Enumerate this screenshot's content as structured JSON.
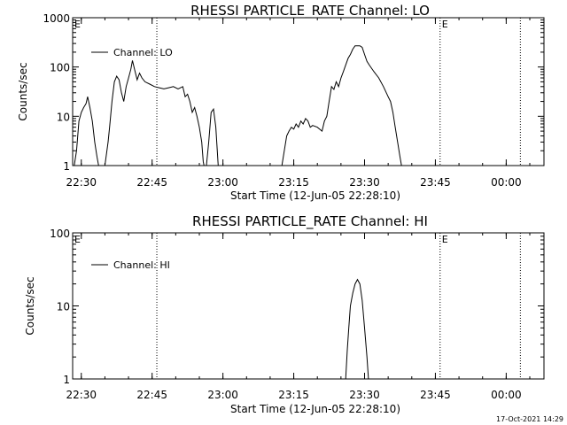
{
  "figure": {
    "footer_stamp": "17-Oct-2021 14:29",
    "colors": {
      "background": "#ffffff",
      "foreground": "#000000"
    }
  },
  "chart_data": [
    {
      "type": "line",
      "title": "RHESSI PARTICLE_RATE Channel: LO",
      "xlabel": "Start Time (12-Jun-05 22:28:10)",
      "ylabel": "Counts/sec",
      "y_scale": "log",
      "ylim": [
        1,
        1000
      ],
      "xlim": [
        "22:28:10",
        "00:08:00"
      ],
      "x_tick_labels": [
        "22:30",
        "22:45",
        "23:00",
        "23:15",
        "23:30",
        "23:45",
        "00:00"
      ],
      "y_tick_labels": [
        "1",
        "10",
        "100",
        "1000"
      ],
      "legend": {
        "entries": [
          "Channel: LO"
        ],
        "placement": "top-left"
      },
      "grid": false,
      "markers": [
        {
          "time": "22:46:00",
          "label": ""
        },
        {
          "time": "23:46:00",
          "label": "E"
        },
        {
          "time": "00:03:00",
          "label": ""
        }
      ],
      "corner_label": "E",
      "series": [
        {
          "name": "Channel: LO",
          "points": [
            [
              "22:28:30",
              1.0
            ],
            [
              "22:29:00",
              2.0
            ],
            [
              "22:29:30",
              8.0
            ],
            [
              "22:30:00",
              12.0
            ],
            [
              "22:30:30",
              15.0
            ],
            [
              "22:31:00",
              18.0
            ],
            [
              "22:31:20",
              25.0
            ],
            [
              "22:31:50",
              15.0
            ],
            [
              "22:32:20",
              8.0
            ],
            [
              "22:32:50",
              3.0
            ],
            [
              "22:33:20",
              1.5
            ],
            [
              "22:33:40",
              1.0
            ],
            [
              "22:35:00",
              1.0
            ],
            [
              "22:35:40",
              3.0
            ],
            [
              "22:36:00",
              6.0
            ],
            [
              "22:36:30",
              20.0
            ],
            [
              "22:37:00",
              50.0
            ],
            [
              "22:37:30",
              65.0
            ],
            [
              "22:38:00",
              55.0
            ],
            [
              "22:38:30",
              30.0
            ],
            [
              "22:39:00",
              20.0
            ],
            [
              "22:39:30",
              40.0
            ],
            [
              "22:40:00",
              60.0
            ],
            [
              "22:40:30",
              90.0
            ],
            [
              "22:40:50",
              135.0
            ],
            [
              "22:41:20",
              85.0
            ],
            [
              "22:41:50",
              55.0
            ],
            [
              "22:42:20",
              75.0
            ],
            [
              "22:42:50",
              60.0
            ],
            [
              "22:43:30",
              50.0
            ],
            [
              "22:44:30",
              45.0
            ],
            [
              "22:45:30",
              40.0
            ],
            [
              "22:46:30",
              38.0
            ],
            [
              "22:47:30",
              36.0
            ],
            [
              "22:48:30",
              38.0
            ],
            [
              "22:49:30",
              40.0
            ],
            [
              "22:50:30",
              36.0
            ],
            [
              "22:51:30",
              40.0
            ],
            [
              "22:52:00",
              25.0
            ],
            [
              "22:52:30",
              28.0
            ],
            [
              "22:53:00",
              20.0
            ],
            [
              "22:53:30",
              12.0
            ],
            [
              "22:54:00",
              15.0
            ],
            [
              "22:54:30",
              10.0
            ],
            [
              "22:55:00",
              6.0
            ],
            [
              "22:55:30",
              3.0
            ],
            [
              "22:55:50",
              1.2
            ],
            [
              "22:56:00",
              1.0
            ],
            [
              "22:56:30",
              1.0
            ],
            [
              "22:57:00",
              3.0
            ],
            [
              "22:57:30",
              12.0
            ],
            [
              "22:58:00",
              14.0
            ],
            [
              "22:58:30",
              6.0
            ],
            [
              "22:59:00",
              1.0
            ],
            [
              "23:12:30",
              1.0
            ],
            [
              "23:13:00",
              2.0
            ],
            [
              "23:13:30",
              4.0
            ],
            [
              "23:14:00",
              5.0
            ],
            [
              "23:14:30",
              6.0
            ],
            [
              "23:15:00",
              5.5
            ],
            [
              "23:15:30",
              7.0
            ],
            [
              "23:16:00",
              6.0
            ],
            [
              "23:16:30",
              8.0
            ],
            [
              "23:17:00",
              7.0
            ],
            [
              "23:17:30",
              9.0
            ],
            [
              "23:18:00",
              8.0
            ],
            [
              "23:18:30",
              6.0
            ],
            [
              "23:19:00",
              6.5
            ],
            [
              "23:20:00",
              6.0
            ],
            [
              "23:21:00",
              5.0
            ],
            [
              "23:21:30",
              8.0
            ],
            [
              "23:22:00",
              10.0
            ],
            [
              "23:22:30",
              20.0
            ],
            [
              "23:23:00",
              40.0
            ],
            [
              "23:23:30",
              35.0
            ],
            [
              "23:24:00",
              50.0
            ],
            [
              "23:24:30",
              40.0
            ],
            [
              "23:25:00",
              60.0
            ],
            [
              "23:25:30",
              80.0
            ],
            [
              "23:26:00",
              110.0
            ],
            [
              "23:26:30",
              150.0
            ],
            [
              "23:27:00",
              180.0
            ],
            [
              "23:27:30",
              230.0
            ],
            [
              "23:28:00",
              270.0
            ],
            [
              "23:29:00",
              270.0
            ],
            [
              "23:29:30",
              250.0
            ],
            [
              "23:30:00",
              180.0
            ],
            [
              "23:30:30",
              130.0
            ],
            [
              "23:31:00",
              110.0
            ],
            [
              "23:32:00",
              80.0
            ],
            [
              "23:33:00",
              60.0
            ],
            [
              "23:34:00",
              40.0
            ],
            [
              "23:35:00",
              25.0
            ],
            [
              "23:35:30",
              20.0
            ],
            [
              "23:36:00",
              12.0
            ],
            [
              "23:36:30",
              6.0
            ],
            [
              "23:37:00",
              3.0
            ],
            [
              "23:37:30",
              1.5
            ],
            [
              "23:37:50",
              1.0
            ]
          ]
        }
      ]
    },
    {
      "type": "line",
      "title": "RHESSI PARTICLE_RATE Channel: HI",
      "xlabel": "Start Time (12-Jun-05 22:28:10)",
      "ylabel": "Counts/sec",
      "y_scale": "log",
      "ylim": [
        1,
        100
      ],
      "xlim": [
        "22:28:10",
        "00:08:00"
      ],
      "x_tick_labels": [
        "22:30",
        "22:45",
        "23:00",
        "23:15",
        "23:30",
        "23:45",
        "00:00"
      ],
      "y_tick_labels": [
        "1",
        "10",
        "100"
      ],
      "legend": {
        "entries": [
          "Channel: HI"
        ],
        "placement": "top-left"
      },
      "grid": false,
      "markers": [
        {
          "time": "22:46:00",
          "label": ""
        },
        {
          "time": "23:46:00",
          "label": "E"
        },
        {
          "time": "00:03:00",
          "label": ""
        }
      ],
      "corner_label": "E",
      "series": [
        {
          "name": "Channel: HI",
          "points": [
            [
              "23:26:00",
              1.0
            ],
            [
              "23:26:20",
              2.5
            ],
            [
              "23:26:40",
              5.0
            ],
            [
              "23:27:00",
              10.0
            ],
            [
              "23:27:30",
              15.0
            ],
            [
              "23:28:00",
              20.0
            ],
            [
              "23:28:30",
              23.0
            ],
            [
              "23:29:00",
              20.0
            ],
            [
              "23:29:30",
              12.0
            ],
            [
              "23:30:00",
              5.0
            ],
            [
              "23:30:30",
              2.0
            ],
            [
              "23:30:50",
              1.0
            ]
          ]
        }
      ]
    }
  ]
}
